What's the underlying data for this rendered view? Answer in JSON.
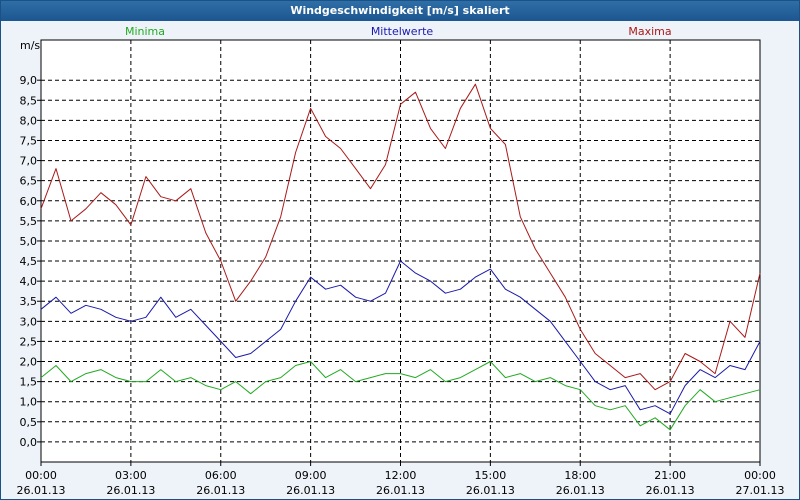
{
  "window": {
    "title": "Windgeschwindigkeit [m/s] skaliert"
  },
  "colors": {
    "minima": "#22aa22",
    "mean": "#1a1aaa",
    "maxima": "#aa1a1a",
    "grid": "#000000",
    "text": "#000000"
  },
  "chart_data": {
    "type": "line",
    "title": "Windgeschwindigkeit [m/s] skaliert",
    "ylabel": "m/s",
    "xlabel": "",
    "ylim": [
      -0.5,
      10.0
    ],
    "xlim": [
      0,
      24
    ],
    "grid": true,
    "y_ticks": [
      "0,0",
      "0,5",
      "1,0",
      "1,5",
      "2,0",
      "2,5",
      "3,0",
      "3,5",
      "4,0",
      "4,5",
      "5,0",
      "5,5",
      "6,0",
      "6,5",
      "7,0",
      "7,5",
      "8,0",
      "8,5",
      "9,0"
    ],
    "y_tick_values": [
      0.0,
      0.5,
      1.0,
      1.5,
      2.0,
      2.5,
      3.0,
      3.5,
      4.0,
      4.5,
      5.0,
      5.5,
      6.0,
      6.5,
      7.0,
      7.5,
      8.0,
      8.5,
      9.0
    ],
    "x_ticks": [
      {
        "time": "00:00",
        "date": "26.01.13"
      },
      {
        "time": "03:00",
        "date": "26.01.13"
      },
      {
        "time": "06:00",
        "date": "26.01.13"
      },
      {
        "time": "09:00",
        "date": "26.01.13"
      },
      {
        "time": "12:00",
        "date": "26.01.13"
      },
      {
        "time": "15:00",
        "date": "26.01.13"
      },
      {
        "time": "18:00",
        "date": "26.01.13"
      },
      {
        "time": "21:00",
        "date": "26.01.13"
      },
      {
        "time": "00:00",
        "date": "27.01.13"
      }
    ],
    "x_tick_values": [
      0,
      3,
      6,
      9,
      12,
      15,
      18,
      21,
      24
    ],
    "series": [
      {
        "name": "Minima",
        "x": [
          0,
          0.5,
          1,
          1.5,
          2,
          2.5,
          3,
          3.5,
          4,
          4.5,
          5,
          5.5,
          6,
          6.5,
          7,
          7.5,
          8,
          8.5,
          9,
          9.5,
          10,
          10.5,
          11,
          11.5,
          12,
          12.5,
          13,
          13.5,
          14,
          14.5,
          15,
          15.5,
          16,
          16.5,
          17,
          17.5,
          18,
          18.5,
          19,
          19.5,
          20,
          20.5,
          21,
          21.5,
          22,
          22.5,
          23,
          23.5,
          24
        ],
        "values": [
          1.6,
          1.9,
          1.5,
          1.7,
          1.8,
          1.6,
          1.5,
          1.5,
          1.8,
          1.5,
          1.6,
          1.4,
          1.3,
          1.5,
          1.2,
          1.5,
          1.6,
          1.9,
          2.0,
          1.6,
          1.8,
          1.5,
          1.6,
          1.7,
          1.7,
          1.6,
          1.8,
          1.5,
          1.6,
          1.8,
          2.0,
          1.6,
          1.7,
          1.5,
          1.6,
          1.4,
          1.3,
          0.9,
          0.8,
          0.9,
          0.4,
          0.6,
          0.3,
          0.9,
          1.3,
          1.0,
          1.1,
          1.2,
          1.3
        ]
      },
      {
        "name": "Mittelwerte",
        "x": [
          0,
          0.5,
          1,
          1.5,
          2,
          2.5,
          3,
          3.5,
          4,
          4.5,
          5,
          5.5,
          6,
          6.5,
          7,
          7.5,
          8,
          8.5,
          9,
          9.5,
          10,
          10.5,
          11,
          11.5,
          12,
          12.5,
          13,
          13.5,
          14,
          14.5,
          15,
          15.5,
          16,
          16.5,
          17,
          17.5,
          18,
          18.5,
          19,
          19.5,
          20,
          20.5,
          21,
          21.5,
          22,
          22.5,
          23,
          23.5,
          24
        ],
        "values": [
          3.3,
          3.6,
          3.2,
          3.4,
          3.3,
          3.1,
          3.0,
          3.1,
          3.6,
          3.1,
          3.3,
          2.9,
          2.5,
          2.1,
          2.2,
          2.5,
          2.8,
          3.5,
          4.1,
          3.8,
          3.9,
          3.6,
          3.5,
          3.7,
          4.5,
          4.2,
          4.0,
          3.7,
          3.8,
          4.1,
          4.3,
          3.8,
          3.6,
          3.3,
          3.0,
          2.5,
          2.0,
          1.5,
          1.3,
          1.4,
          0.8,
          0.9,
          0.7,
          1.4,
          1.8,
          1.6,
          1.9,
          1.8,
          2.5
        ]
      },
      {
        "name": "Maxima",
        "x": [
          0,
          0.5,
          1,
          1.5,
          2,
          2.5,
          3,
          3.5,
          4,
          4.5,
          5,
          5.5,
          6,
          6.5,
          7,
          7.5,
          8,
          8.5,
          9,
          9.5,
          10,
          10.5,
          11,
          11.5,
          12,
          12.5,
          13,
          13.5,
          14,
          14.5,
          15,
          15.5,
          16,
          16.5,
          17,
          17.5,
          18,
          18.5,
          19,
          19.5,
          20,
          20.5,
          21,
          21.5,
          22,
          22.5,
          23,
          23.5,
          24
        ],
        "values": [
          5.8,
          6.8,
          5.5,
          5.8,
          6.2,
          5.9,
          5.4,
          6.6,
          6.1,
          6.0,
          6.3,
          5.2,
          4.5,
          3.5,
          4.0,
          4.6,
          5.6,
          7.2,
          8.3,
          7.6,
          7.3,
          6.8,
          6.3,
          6.9,
          8.4,
          8.7,
          7.8,
          7.3,
          8.3,
          8.9,
          7.8,
          7.4,
          5.6,
          4.8,
          4.2,
          3.6,
          2.8,
          2.2,
          1.9,
          1.6,
          1.7,
          1.3,
          1.5,
          2.2,
          2.0,
          1.7,
          3.0,
          2.6,
          4.2
        ]
      }
    ]
  }
}
